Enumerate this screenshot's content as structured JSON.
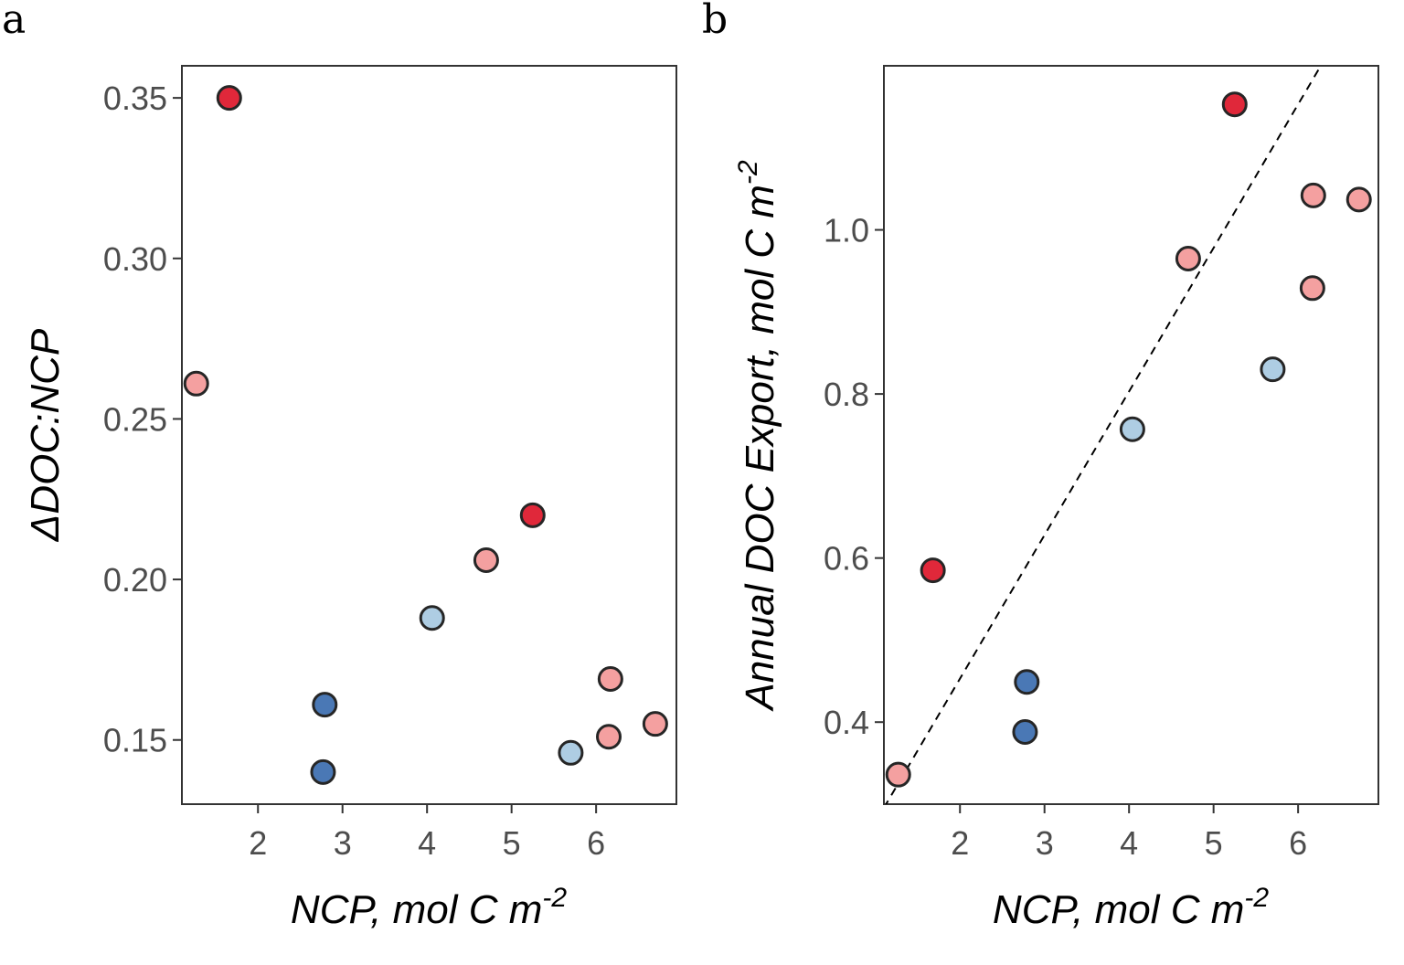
{
  "chart_data": [
    {
      "type": "scatter",
      "panel_label": "a",
      "xlabel": "NCP, mol C m",
      "xlabel_sup": "-2",
      "ylabel": "ΔDOC:NCP",
      "ylabel_sup": "",
      "xlim": [
        1.1,
        6.95
      ],
      "ylim": [
        0.13,
        0.36
      ],
      "xticks": [
        2,
        3,
        4,
        5,
        6
      ],
      "yticks": [
        0.15,
        0.2,
        0.25,
        0.3,
        0.35
      ],
      "ytick_decimals": 2,
      "grid": false,
      "points": [
        {
          "x": 1.27,
          "y": 0.261,
          "color": "#f4a0a0"
        },
        {
          "x": 1.66,
          "y": 0.35,
          "color": "#e0283a"
        },
        {
          "x": 2.77,
          "y": 0.14,
          "color": "#4a78b5"
        },
        {
          "x": 2.79,
          "y": 0.161,
          "color": "#4a78b5"
        },
        {
          "x": 4.06,
          "y": 0.188,
          "color": "#aecde3"
        },
        {
          "x": 4.7,
          "y": 0.206,
          "color": "#f4a0a0"
        },
        {
          "x": 5.25,
          "y": 0.22,
          "color": "#e0283a"
        },
        {
          "x": 5.7,
          "y": 0.146,
          "color": "#aecde3"
        },
        {
          "x": 6.15,
          "y": 0.151,
          "color": "#f4a0a0"
        },
        {
          "x": 6.17,
          "y": 0.169,
          "color": "#f4a0a0"
        },
        {
          "x": 6.7,
          "y": 0.155,
          "color": "#f4a0a0"
        }
      ]
    },
    {
      "type": "scatter",
      "panel_label": "b",
      "xlabel": "NCP, mol C m",
      "xlabel_sup": "-2",
      "ylabel": "Annual DOC Export, mol C m",
      "ylabel_sup": "-2",
      "xlim": [
        1.1,
        6.95
      ],
      "ylim": [
        0.3,
        1.2
      ],
      "xticks": [
        2,
        3,
        4,
        5,
        6
      ],
      "yticks": [
        0.4,
        0.6,
        0.8,
        1.0
      ],
      "ytick_decimals": 1,
      "grid": false,
      "reference_line": {
        "style": "dashed",
        "color": "#000000",
        "slope": 0.175,
        "intercept": 0.103
      },
      "points": [
        {
          "x": 1.27,
          "y": 0.336,
          "color": "#f4a0a0"
        },
        {
          "x": 1.68,
          "y": 0.585,
          "color": "#e0283a"
        },
        {
          "x": 2.77,
          "y": 0.388,
          "color": "#4a78b5"
        },
        {
          "x": 2.79,
          "y": 0.449,
          "color": "#4a78b5"
        },
        {
          "x": 4.04,
          "y": 0.757,
          "color": "#aecde3"
        },
        {
          "x": 4.7,
          "y": 0.965,
          "color": "#f4a0a0"
        },
        {
          "x": 5.25,
          "y": 1.153,
          "color": "#e0283a"
        },
        {
          "x": 5.7,
          "y": 0.83,
          "color": "#aecde3"
        },
        {
          "x": 6.17,
          "y": 0.929,
          "color": "#f4a0a0"
        },
        {
          "x": 6.18,
          "y": 1.042,
          "color": "#f4a0a0"
        },
        {
          "x": 6.72,
          "y": 1.037,
          "color": "#f4a0a0"
        }
      ]
    }
  ]
}
